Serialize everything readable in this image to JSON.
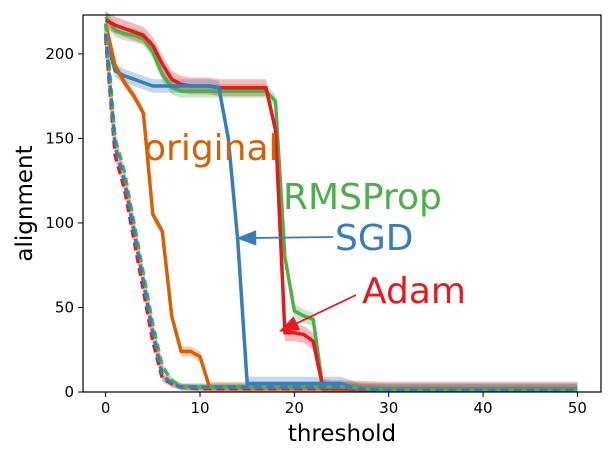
{
  "chart_data": {
    "type": "line",
    "xlabel": "threshold",
    "ylabel": "alignment",
    "xlim": [
      -2.4,
      52.5
    ],
    "ylim": [
      0,
      223
    ],
    "xticks": [
      0,
      10,
      20,
      30,
      40,
      50
    ],
    "yticks": [
      0,
      50,
      100,
      150,
      200
    ],
    "grid": false,
    "legend": "none",
    "colors": {
      "original": "#d95f02",
      "RMSProp": "#4daf4a",
      "SGD": "#377eb8",
      "Adam": "#e41a1c",
      "dashed_pale": "#e7b0b0"
    },
    "annotations": [
      {
        "text": "original",
        "series": "original",
        "arrow": false
      },
      {
        "text": "RMSProp",
        "series": "RMSProp",
        "arrow": false
      },
      {
        "text": "SGD",
        "series": "SGD",
        "arrow": true,
        "arrow_target": {
          "x": 14,
          "y": 91
        }
      },
      {
        "text": "Adam",
        "series": "Adam",
        "arrow": true,
        "arrow_target": {
          "x": 18.5,
          "y": 36
        }
      }
    ],
    "series": [
      {
        "name": "RMSProp",
        "style": "solid",
        "band": 4,
        "x": [
          0,
          1,
          2,
          3,
          4,
          5,
          6,
          7,
          8,
          9,
          10,
          11,
          12,
          13,
          14,
          15,
          16,
          17,
          18,
          19,
          20,
          21,
          22,
          23,
          24,
          25,
          30,
          40,
          50
        ],
        "y": [
          222,
          214,
          212,
          211,
          209,
          201,
          188,
          180,
          178,
          178,
          178,
          178,
          178,
          178,
          178,
          178,
          178,
          178,
          172,
          80,
          48,
          45,
          43,
          3,
          2,
          2,
          1,
          1,
          1
        ]
      },
      {
        "name": "Adam",
        "style": "solid",
        "band": 5,
        "x": [
          0,
          1,
          2,
          3,
          4,
          5,
          6,
          7,
          8,
          9,
          10,
          11,
          12,
          13,
          14,
          15,
          16,
          17,
          18,
          19,
          20,
          21,
          22,
          23,
          24,
          25,
          30,
          40,
          50
        ],
        "y": [
          220,
          217,
          215,
          213,
          211,
          205,
          194,
          185,
          182,
          181,
          181,
          181,
          180,
          180,
          180,
          180,
          180,
          180,
          155,
          35,
          35,
          34,
          30,
          3,
          2,
          2,
          1,
          1,
          1
        ]
      },
      {
        "name": "SGD",
        "style": "solid",
        "band": 4,
        "x": [
          0,
          1,
          2,
          3,
          4,
          5,
          6,
          7,
          8,
          9,
          10,
          11,
          12,
          13,
          14,
          15,
          16,
          17,
          18,
          19,
          20,
          21,
          22,
          23,
          24,
          25,
          26,
          27,
          30,
          40,
          50
        ],
        "y": [
          210,
          190,
          187,
          185,
          183,
          181,
          181,
          181,
          181,
          181,
          181,
          181,
          180,
          150,
          90,
          5,
          5,
          5,
          5,
          5,
          5,
          5,
          5,
          5,
          5,
          5,
          3,
          1,
          1,
          1,
          1
        ]
      },
      {
        "name": "original",
        "style": "solid",
        "band": 3,
        "x": [
          0,
          1,
          2,
          3,
          4,
          5,
          6,
          7,
          8,
          9,
          10,
          11,
          12,
          15,
          20,
          25,
          30,
          40,
          50
        ],
        "y": [
          218,
          193,
          183,
          175,
          165,
          105,
          95,
          45,
          24,
          24,
          21,
          3,
          3,
          3,
          3,
          3,
          1,
          1,
          1
        ]
      },
      {
        "name": "Adam-dashed",
        "style": "dashed",
        "color_key": "Adam",
        "band": 2,
        "x": [
          0,
          1,
          2,
          3,
          4,
          5,
          6,
          7,
          8,
          10,
          15,
          20,
          25,
          30,
          40,
          50
        ],
        "y": [
          210,
          140,
          120,
          90,
          60,
          30,
          8,
          5,
          3,
          2,
          2,
          2,
          2,
          1,
          1,
          1
        ]
      },
      {
        "name": "pale-dashed",
        "style": "dashed",
        "color_key": "dashed_pale",
        "band": 0,
        "x": [
          0,
          1,
          2,
          3,
          4,
          5,
          6,
          7,
          8,
          10,
          15,
          20,
          25,
          30,
          40,
          50
        ],
        "y": [
          213,
          148,
          128,
          98,
          68,
          38,
          13,
          6,
          3,
          3,
          3,
          3,
          3,
          1,
          1,
          1
        ]
      },
      {
        "name": "RMSProp-dashed",
        "style": "dashed",
        "color_key": "RMSProp",
        "band": 2,
        "x": [
          0,
          1,
          2,
          3,
          4,
          5,
          6,
          7,
          8,
          10,
          15,
          20,
          25,
          30,
          40,
          50
        ],
        "y": [
          218,
          150,
          130,
          100,
          70,
          40,
          15,
          7,
          3,
          3,
          3,
          3,
          3,
          1,
          1,
          1
        ]
      },
      {
        "name": "SGD-dashed",
        "style": "dashed",
        "color_key": "SGD",
        "band": 2,
        "x": [
          0,
          1,
          2,
          3,
          4,
          5,
          6,
          7,
          8,
          10,
          15,
          20,
          25,
          30,
          40,
          50
        ],
        "y": [
          212,
          145,
          125,
          95,
          65,
          35,
          10,
          5,
          3,
          3,
          3,
          3,
          3,
          1,
          1,
          1
        ]
      }
    ]
  }
}
